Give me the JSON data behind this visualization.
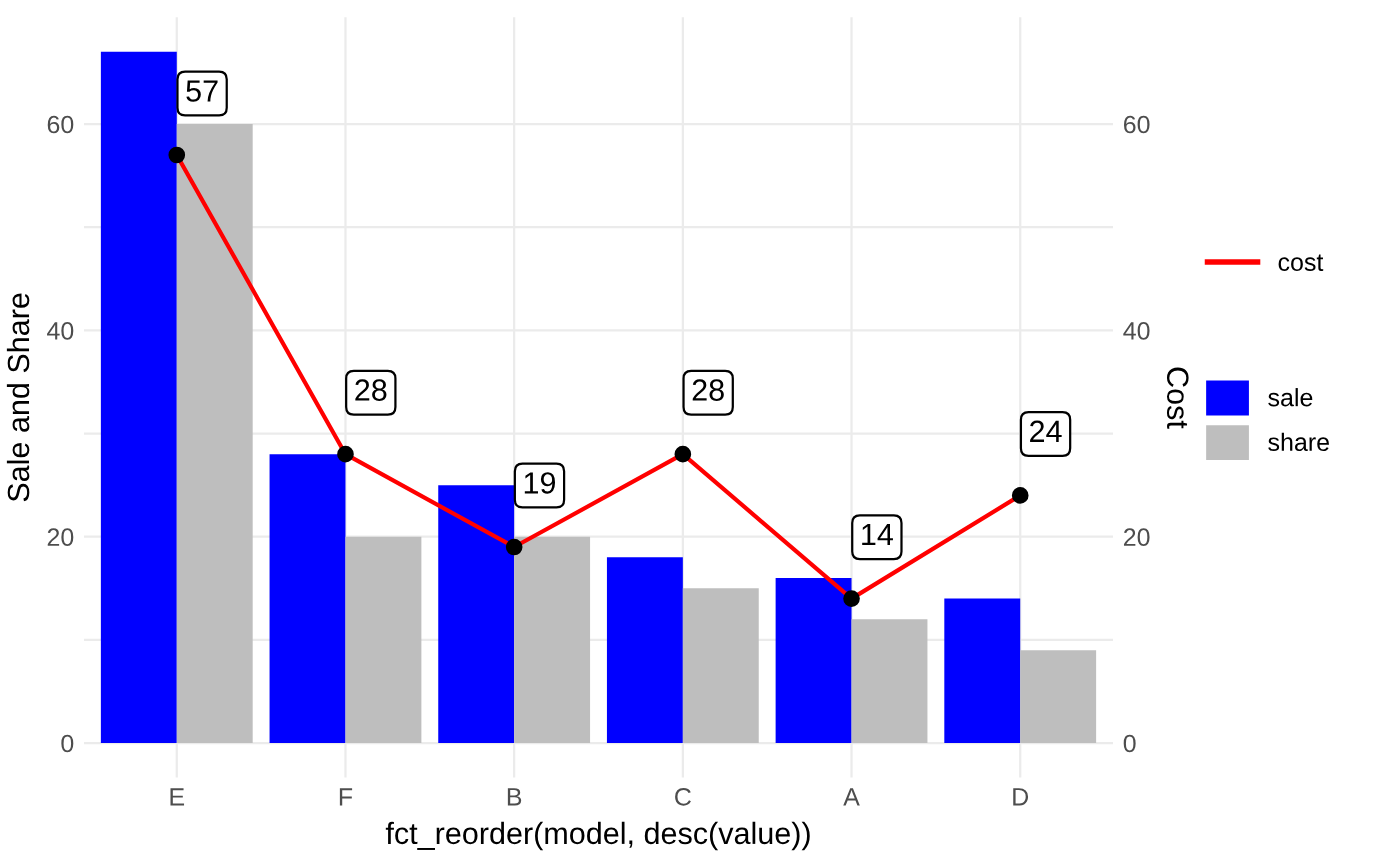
{
  "chart_data": {
    "type": "bar",
    "xlabel": "fct_reorder(model, desc(value))",
    "ylabel": "Sale and Share",
    "y2label": "Cost",
    "categories": [
      "E",
      "F",
      "B",
      "C",
      "A",
      "D"
    ],
    "series": [
      {
        "name": "sale",
        "color": "#0000ff",
        "values": [
          67,
          28,
          25,
          18,
          16,
          14
        ]
      },
      {
        "name": "share",
        "color": "#bebebe",
        "values": [
          60,
          20,
          20,
          15,
          12,
          9
        ]
      },
      {
        "name": "cost",
        "type": "line",
        "axis": "y2",
        "color": "#ff0000",
        "marker": "circle",
        "values": [
          57,
          28,
          19,
          28,
          14,
          24
        ],
        "value_labels": [
          "57",
          "28",
          "19",
          "28",
          "14",
          "24"
        ]
      }
    ],
    "ylim": [
      -3.35,
      70.35
    ],
    "yticks": [
      0,
      20,
      40,
      60
    ],
    "y2lim": [
      -3.35,
      70.35
    ],
    "y2ticks": [
      0,
      20,
      40,
      60
    ],
    "grid": true,
    "legend": "right"
  }
}
